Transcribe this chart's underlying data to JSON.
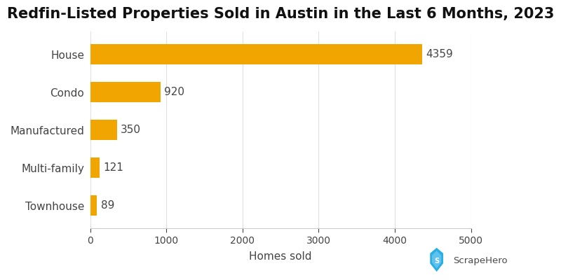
{
  "title": "Redfin-Listed Properties Sold in Austin in the Last 6 Months, 2023",
  "categories": [
    "House",
    "Condo",
    "Manufactured",
    "Multi-family",
    "Townhouse"
  ],
  "values": [
    4359,
    920,
    350,
    121,
    89
  ],
  "bar_color": "#F0A500",
  "xlabel": "Homes sold",
  "xlim": [
    0,
    5000
  ],
  "xticks": [
    0,
    1000,
    2000,
    3000,
    4000,
    5000
  ],
  "background_color": "#ffffff",
  "title_fontsize": 15,
  "label_fontsize": 11,
  "tick_fontsize": 10,
  "value_fontsize": 11,
  "bar_height": 0.55,
  "scrapehero_text_color": "#4a4a4a",
  "scrapehero_shield_color": "#29aee6"
}
